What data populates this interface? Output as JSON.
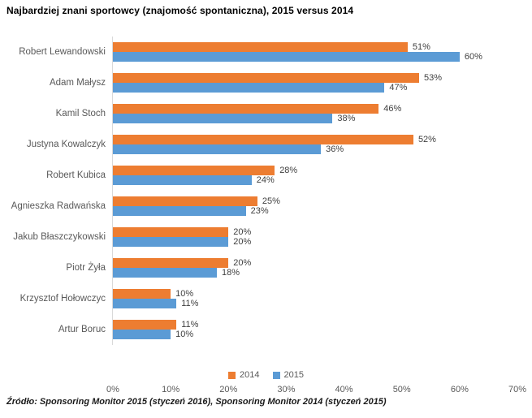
{
  "title": "Najbardziej znani sportowcy (znajomość spontaniczna), 2015 versus 2014",
  "source": "Źródło: Sponsoring Monitor 2015 (styczeń 2016), Sponsoring Monitor 2014 (styczeń 2015)",
  "legend": [
    {
      "label": "2014",
      "color": "#ED7D31"
    },
    {
      "label": "2015",
      "color": "#5B9BD5"
    }
  ],
  "colors": {
    "series_2014": "#ED7D31",
    "series_2015": "#5B9BD5",
    "axis_line": "#d9d9d9",
    "category_label": "#595959",
    "value_label": "#404040"
  },
  "chart_data": {
    "type": "bar",
    "orientation": "horizontal",
    "title": "Najbardziej znani sportowcy (znajomość spontaniczna), 2015 versus 2014",
    "categories": [
      "Robert Lewandowski",
      "Adam Małysz",
      "Kamil Stoch",
      "Justyna Kowalczyk",
      "Robert Kubica",
      "Agnieszka Radwańska",
      "Jakub Błaszczykowski",
      "Piotr Żyła",
      "Krzysztof Hołowczyc",
      "Artur Boruc"
    ],
    "series": [
      {
        "name": "2014",
        "color": "#ED7D31",
        "values": [
          51,
          53,
          46,
          52,
          28,
          25,
          20,
          20,
          10,
          11
        ]
      },
      {
        "name": "2015",
        "color": "#5B9BD5",
        "values": [
          60,
          47,
          38,
          36,
          24,
          23,
          20,
          18,
          11,
          10
        ]
      }
    ],
    "value_suffix": "%",
    "xlim": [
      0,
      70
    ],
    "x_ticks": [
      "0%",
      "10%",
      "20%",
      "30%",
      "40%",
      "50%",
      "60%",
      "70%"
    ],
    "grid": false,
    "legend_position": "bottom"
  }
}
